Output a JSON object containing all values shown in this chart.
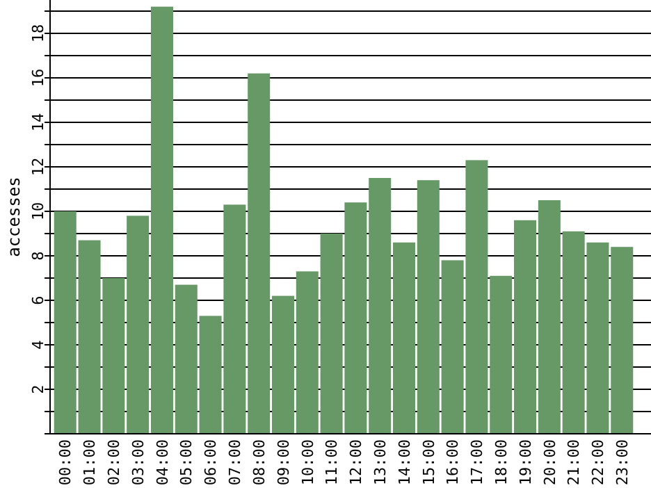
{
  "chart_data": {
    "type": "bar",
    "ylabel": "accesses",
    "categories": [
      "00:00",
      "01:00",
      "02:00",
      "03:00",
      "04:00",
      "05:00",
      "06:00",
      "07:00",
      "08:00",
      "09:00",
      "10:00",
      "11:00",
      "12:00",
      "13:00",
      "14:00",
      "15:00",
      "16:00",
      "17:00",
      "18:00",
      "19:00",
      "20:00",
      "21:00",
      "22:00",
      "23:00"
    ],
    "values": [
      10,
      8.7,
      7,
      9.8,
      19.2,
      6.7,
      5.3,
      10.3,
      16.2,
      6.2,
      7.3,
      9,
      10.4,
      11.5,
      8.6,
      11.4,
      7.8,
      12.3,
      7.1,
      9.6,
      10.5,
      9.1,
      8.6,
      8.4
    ],
    "color": "#669966",
    "ylim": [
      0,
      19.5
    ],
    "yticks": [
      {
        "value": 1,
        "label": null
      },
      2,
      {
        "value": 3,
        "label": null
      },
      4,
      {
        "value": 5,
        "label": null
      },
      6,
      {
        "value": 7,
        "label": null
      },
      8,
      {
        "value": 9,
        "label": null
      },
      10,
      {
        "value": 11,
        "label": null
      },
      12,
      {
        "value": 13,
        "label": null
      },
      14,
      {
        "value": 15,
        "label": null
      },
      16,
      {
        "value": 17,
        "label": null
      },
      18,
      {
        "value": 19,
        "label": null
      }
    ],
    "grid": "y"
  }
}
